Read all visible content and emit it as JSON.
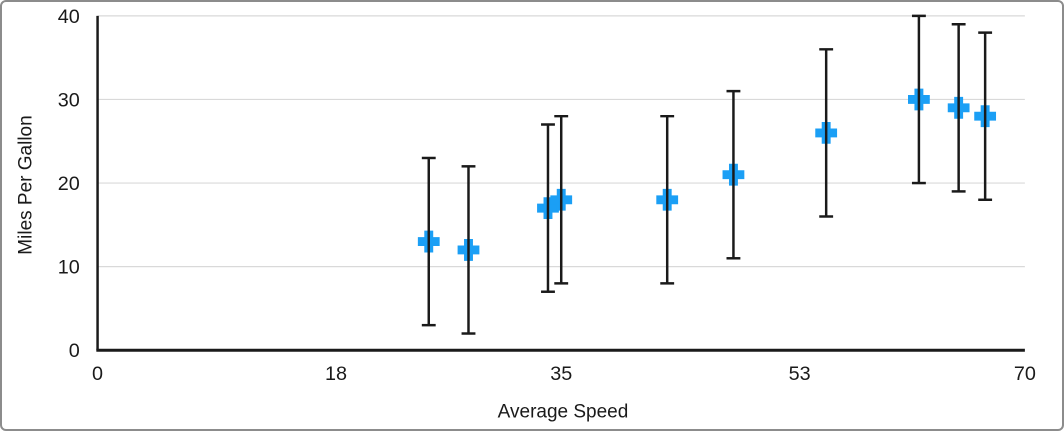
{
  "chart_data": {
    "type": "scatter",
    "title": "",
    "xlabel": "Average Speed",
    "ylabel": "Miles Per Gallon",
    "xlim": [
      0,
      70
    ],
    "ylim": [
      0,
      40
    ],
    "xticks": [
      0,
      18,
      35,
      53,
      70
    ],
    "yticks": [
      0,
      10,
      20,
      30,
      40
    ],
    "grid": "horizontal-only",
    "legend": "none",
    "marker": "plus",
    "marker_color": "#1b9ff5",
    "axis_color": "#1a1a1a",
    "gridline_color": "#d9d9d9",
    "text_color": "#1a1a1a",
    "error_bars": {
      "direction": "y",
      "type": "fixed",
      "value": 10,
      "color": "#1a1a1a"
    },
    "points": [
      {
        "x": 25,
        "y": 13
      },
      {
        "x": 28,
        "y": 12
      },
      {
        "x": 34,
        "y": 17
      },
      {
        "x": 35,
        "y": 18
      },
      {
        "x": 43,
        "y": 18
      },
      {
        "x": 48,
        "y": 21
      },
      {
        "x": 55,
        "y": 26
      },
      {
        "x": 62,
        "y": 30
      },
      {
        "x": 65,
        "y": 29
      },
      {
        "x": 67,
        "y": 28
      }
    ]
  }
}
